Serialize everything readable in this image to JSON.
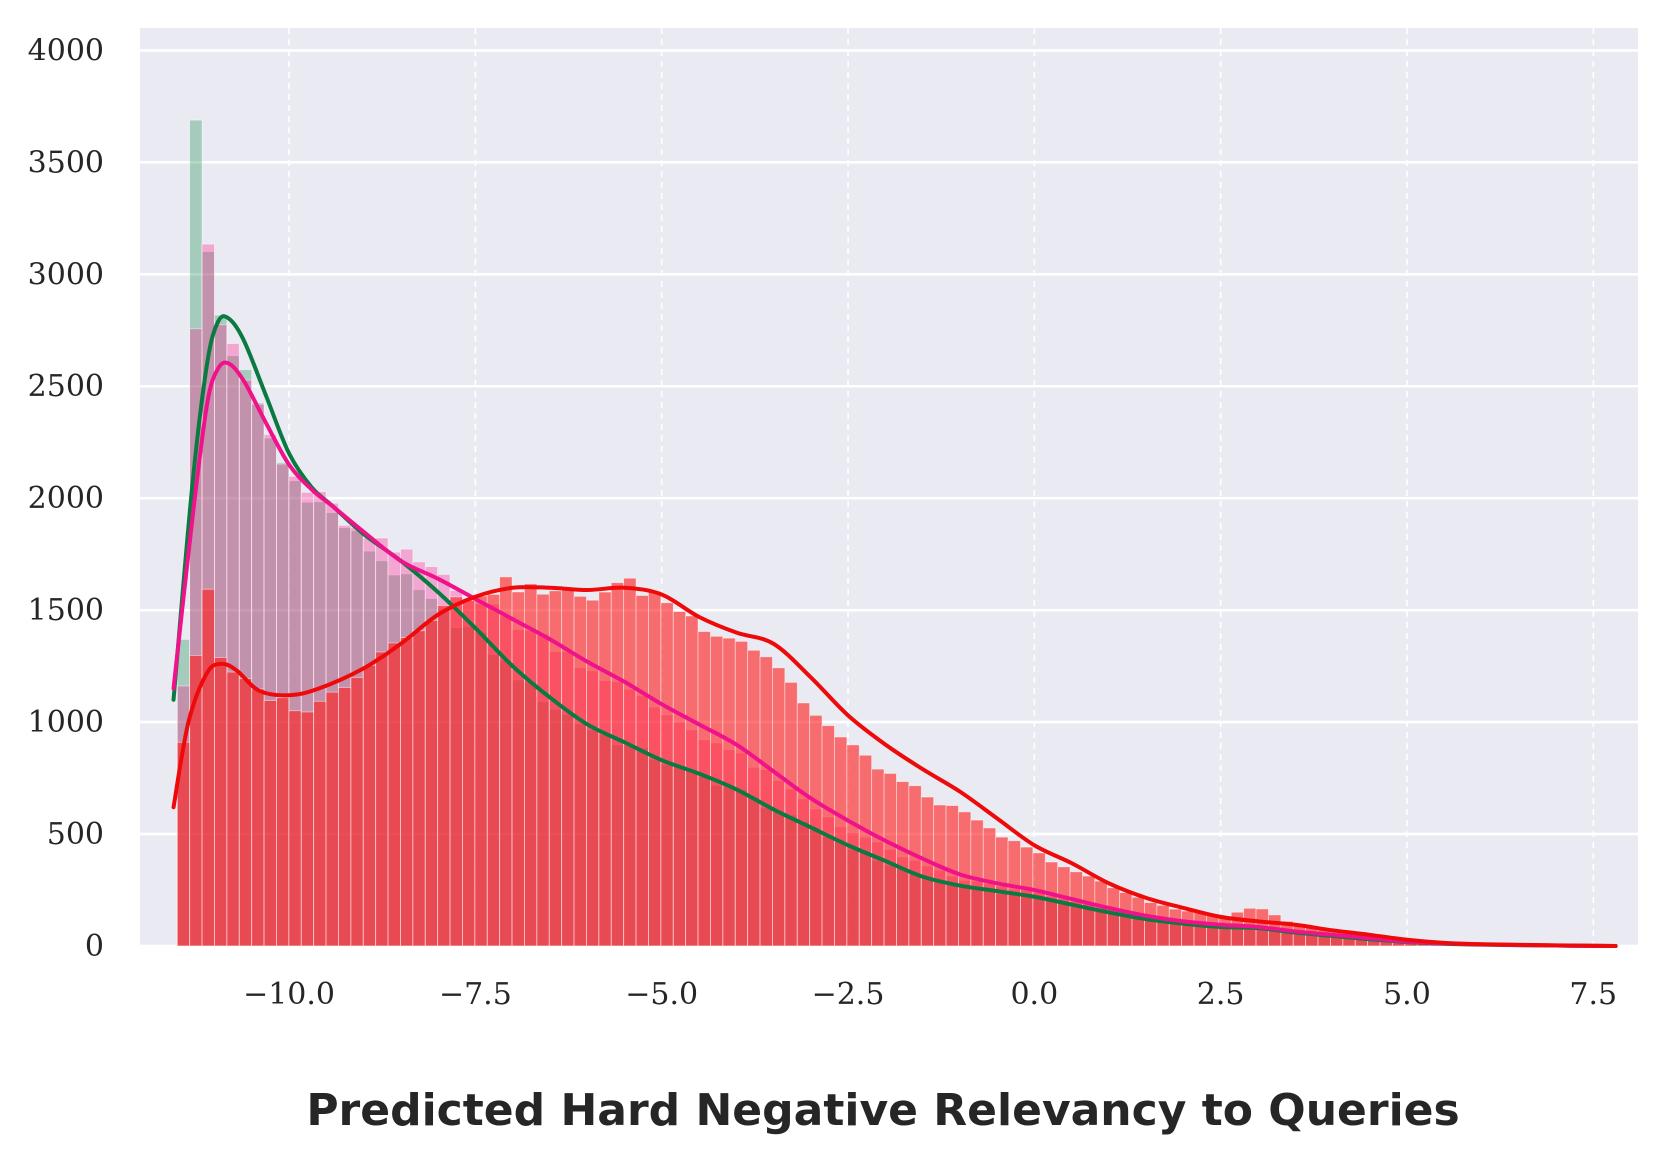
{
  "chart_data": {
    "type": "histogram",
    "title": "",
    "xlabel": "Predicted Hard Negative Relevancy to Queries",
    "ylabel": "",
    "xlim": [
      -12.0,
      8.1
    ],
    "ylim": [
      0,
      4100
    ],
    "xticks": [
      -10.0,
      -7.5,
      -5.0,
      -2.5,
      0.0,
      2.5,
      5.0,
      7.5
    ],
    "xtick_labels": [
      "−10.0",
      "−7.5",
      "−5.0",
      "−2.5",
      "0.0",
      "2.5",
      "5.0",
      "7.5"
    ],
    "yticks": [
      0,
      500,
      1000,
      1500,
      2000,
      2500,
      3000,
      3500,
      4000
    ],
    "ytick_labels": [
      "0",
      "500",
      "1000",
      "1500",
      "2000",
      "2500",
      "3000",
      "3500",
      "4000"
    ],
    "grid": true,
    "background": "#eaeaf2",
    "bin_range": [
      -11.5,
      7.8
    ],
    "bin_count": 116,
    "series": [
      {
        "color": "#148a4a",
        "line_color": "#0b7a42",
        "bar_opacity": 0.32,
        "anchors": [
          [
            -11.45,
            650
          ],
          [
            -11.3,
            3900
          ],
          [
            -11.15,
            3260
          ],
          [
            -11.0,
            2900
          ],
          [
            -10.8,
            2700
          ],
          [
            -10.6,
            2550
          ],
          [
            -10.3,
            2300
          ],
          [
            -10.0,
            2100
          ],
          [
            -9.5,
            1950
          ],
          [
            -9.0,
            1800
          ],
          [
            -8.5,
            1650
          ],
          [
            -8.0,
            1500
          ],
          [
            -7.5,
            1400
          ],
          [
            -7.0,
            1230
          ],
          [
            -6.5,
            1080
          ],
          [
            -6.0,
            980
          ],
          [
            -5.5,
            900
          ],
          [
            -5.0,
            830
          ],
          [
            -4.5,
            760
          ],
          [
            -4.0,
            700
          ],
          [
            -3.5,
            610
          ],
          [
            -3.0,
            530
          ],
          [
            -2.5,
            450
          ],
          [
            -2.0,
            370
          ],
          [
            -1.5,
            310
          ],
          [
            -1.0,
            270
          ],
          [
            -0.5,
            240
          ],
          [
            0.0,
            220
          ],
          [
            0.5,
            190
          ],
          [
            1.0,
            160
          ],
          [
            1.5,
            130
          ],
          [
            2.0,
            110
          ],
          [
            2.5,
            95
          ],
          [
            3.0,
            90
          ],
          [
            3.5,
            70
          ],
          [
            4.0,
            55
          ],
          [
            4.5,
            40
          ],
          [
            5.0,
            25
          ],
          [
            5.5,
            15
          ],
          [
            6.0,
            10
          ],
          [
            6.5,
            6
          ],
          [
            7.0,
            3
          ],
          [
            7.8,
            0
          ]
        ],
        "kde": [
          [
            -11.55,
            1100
          ],
          [
            -11.3,
            2050
          ],
          [
            -11.1,
            2600
          ],
          [
            -10.95,
            2790
          ],
          [
            -10.8,
            2800
          ],
          [
            -10.6,
            2700
          ],
          [
            -10.3,
            2450
          ],
          [
            -10.0,
            2200
          ],
          [
            -9.7,
            2050
          ],
          [
            -9.4,
            1960
          ],
          [
            -9.0,
            1840
          ],
          [
            -8.5,
            1720
          ],
          [
            -8.0,
            1580
          ],
          [
            -7.5,
            1420
          ],
          [
            -7.0,
            1250
          ],
          [
            -6.5,
            1110
          ],
          [
            -6.0,
            990
          ],
          [
            -5.5,
            910
          ],
          [
            -5.0,
            830
          ],
          [
            -4.5,
            770
          ],
          [
            -4.0,
            700
          ],
          [
            -3.5,
            610
          ],
          [
            -3.0,
            530
          ],
          [
            -2.5,
            450
          ],
          [
            -2.0,
            380
          ],
          [
            -1.5,
            310
          ],
          [
            -1.0,
            270
          ],
          [
            -0.5,
            245
          ],
          [
            0.0,
            220
          ],
          [
            0.5,
            185
          ],
          [
            1.0,
            150
          ],
          [
            1.5,
            120
          ],
          [
            2.0,
            100
          ],
          [
            2.5,
            85
          ],
          [
            3.0,
            80
          ],
          [
            3.5,
            60
          ],
          [
            4.0,
            45
          ],
          [
            4.5,
            30
          ],
          [
            5.0,
            18
          ],
          [
            5.5,
            10
          ],
          [
            6.0,
            6
          ],
          [
            7.0,
            2
          ],
          [
            7.8,
            0
          ]
        ]
      },
      {
        "color": "#ff1a8c",
        "line_color": "#f0128a",
        "bar_opacity": 0.32,
        "anchors": [
          [
            -11.45,
            980
          ],
          [
            -11.3,
            1800
          ],
          [
            -11.2,
            3730
          ],
          [
            -11.05,
            2960
          ],
          [
            -10.9,
            2750
          ],
          [
            -10.7,
            2600
          ],
          [
            -10.4,
            2400
          ],
          [
            -10.1,
            2150
          ],
          [
            -9.7,
            2020
          ],
          [
            -9.3,
            1920
          ],
          [
            -9.0,
            1820
          ],
          [
            -8.5,
            1750
          ],
          [
            -8.0,
            1680
          ],
          [
            -7.5,
            1550
          ],
          [
            -7.0,
            1450
          ],
          [
            -6.5,
            1360
          ],
          [
            -6.0,
            1250
          ],
          [
            -5.5,
            1150
          ],
          [
            -5.0,
            1050
          ],
          [
            -4.5,
            950
          ],
          [
            -4.0,
            860
          ],
          [
            -3.5,
            750
          ],
          [
            -3.0,
            630
          ],
          [
            -2.5,
            520
          ],
          [
            -2.0,
            440
          ],
          [
            -1.5,
            360
          ],
          [
            -1.0,
            300
          ],
          [
            -0.5,
            270
          ],
          [
            0.0,
            240
          ],
          [
            0.5,
            200
          ],
          [
            1.0,
            165
          ],
          [
            1.5,
            135
          ],
          [
            2.0,
            115
          ],
          [
            2.5,
            100
          ],
          [
            3.0,
            90
          ],
          [
            3.5,
            70
          ],
          [
            4.0,
            55
          ],
          [
            4.5,
            40
          ],
          [
            5.0,
            25
          ],
          [
            5.5,
            15
          ],
          [
            6.0,
            10
          ],
          [
            6.5,
            6
          ],
          [
            7.0,
            3
          ],
          [
            7.8,
            0
          ]
        ],
        "kde": [
          [
            -11.55,
            1150
          ],
          [
            -11.3,
            1900
          ],
          [
            -11.1,
            2420
          ],
          [
            -10.95,
            2580
          ],
          [
            -10.8,
            2600
          ],
          [
            -10.6,
            2520
          ],
          [
            -10.3,
            2330
          ],
          [
            -10.0,
            2150
          ],
          [
            -9.7,
            2040
          ],
          [
            -9.4,
            1960
          ],
          [
            -9.0,
            1850
          ],
          [
            -8.5,
            1720
          ],
          [
            -8.0,
            1640
          ],
          [
            -7.5,
            1550
          ],
          [
            -7.0,
            1460
          ],
          [
            -6.5,
            1370
          ],
          [
            -6.0,
            1270
          ],
          [
            -5.5,
            1180
          ],
          [
            -5.0,
            1080
          ],
          [
            -4.5,
            990
          ],
          [
            -4.0,
            900
          ],
          [
            -3.5,
            780
          ],
          [
            -3.0,
            660
          ],
          [
            -2.5,
            560
          ],
          [
            -2.0,
            470
          ],
          [
            -1.5,
            390
          ],
          [
            -1.0,
            320
          ],
          [
            -0.5,
            280
          ],
          [
            0.0,
            250
          ],
          [
            0.5,
            210
          ],
          [
            1.0,
            170
          ],
          [
            1.5,
            135
          ],
          [
            2.0,
            110
          ],
          [
            2.5,
            95
          ],
          [
            3.0,
            85
          ],
          [
            3.5,
            65
          ],
          [
            4.0,
            50
          ],
          [
            4.5,
            35
          ],
          [
            5.0,
            20
          ],
          [
            5.5,
            12
          ],
          [
            6.0,
            7
          ],
          [
            7.0,
            2
          ],
          [
            7.8,
            0
          ]
        ]
      },
      {
        "color": "#ff1f1f",
        "line_color": "#ee0a0a",
        "bar_opacity": 0.62,
        "anchors": [
          [
            -11.45,
            870
          ],
          [
            -11.3,
            1050
          ],
          [
            -11.15,
            1800
          ],
          [
            -11.0,
            1330
          ],
          [
            -10.8,
            1230
          ],
          [
            -10.5,
            1150
          ],
          [
            -10.0,
            1080
          ],
          [
            -9.7,
            1050
          ],
          [
            -9.3,
            1160
          ],
          [
            -9.0,
            1250
          ],
          [
            -8.5,
            1380
          ],
          [
            -8.0,
            1500
          ],
          [
            -7.5,
            1580
          ],
          [
            -7.0,
            1620
          ],
          [
            -6.5,
            1570
          ],
          [
            -6.0,
            1560
          ],
          [
            -5.5,
            1620
          ],
          [
            -5.0,
            1560
          ],
          [
            -4.5,
            1440
          ],
          [
            -4.0,
            1380
          ],
          [
            -3.5,
            1280
          ],
          [
            -3.0,
            1050
          ],
          [
            -2.5,
            900
          ],
          [
            -2.0,
            780
          ],
          [
            -1.5,
            680
          ],
          [
            -1.0,
            600
          ],
          [
            -0.5,
            500
          ],
          [
            0.0,
            420
          ],
          [
            0.5,
            340
          ],
          [
            1.0,
            270
          ],
          [
            1.5,
            200
          ],
          [
            2.0,
            160
          ],
          [
            2.5,
            130
          ],
          [
            3.0,
            175
          ],
          [
            3.5,
            95
          ],
          [
            4.0,
            75
          ],
          [
            4.5,
            55
          ],
          [
            5.0,
            30
          ],
          [
            5.5,
            18
          ],
          [
            6.0,
            10
          ],
          [
            6.5,
            6
          ],
          [
            7.0,
            3
          ],
          [
            7.8,
            0
          ]
        ],
        "kde": [
          [
            -11.55,
            620
          ],
          [
            -11.35,
            1000
          ],
          [
            -11.1,
            1220
          ],
          [
            -10.9,
            1260
          ],
          [
            -10.7,
            1230
          ],
          [
            -10.4,
            1140
          ],
          [
            -10.0,
            1120
          ],
          [
            -9.6,
            1150
          ],
          [
            -9.0,
            1240
          ],
          [
            -8.5,
            1350
          ],
          [
            -8.0,
            1480
          ],
          [
            -7.5,
            1560
          ],
          [
            -7.0,
            1600
          ],
          [
            -6.5,
            1600
          ],
          [
            -6.0,
            1590
          ],
          [
            -5.5,
            1600
          ],
          [
            -5.0,
            1570
          ],
          [
            -4.5,
            1470
          ],
          [
            -4.0,
            1400
          ],
          [
            -3.5,
            1350
          ],
          [
            -3.0,
            1200
          ],
          [
            -2.5,
            1030
          ],
          [
            -2.0,
            900
          ],
          [
            -1.5,
            790
          ],
          [
            -1.0,
            690
          ],
          [
            -0.5,
            570
          ],
          [
            0.0,
            450
          ],
          [
            0.5,
            370
          ],
          [
            1.0,
            280
          ],
          [
            1.5,
            215
          ],
          [
            2.0,
            170
          ],
          [
            2.5,
            130
          ],
          [
            3.0,
            110
          ],
          [
            3.5,
            95
          ],
          [
            4.0,
            70
          ],
          [
            4.5,
            50
          ],
          [
            5.0,
            28
          ],
          [
            5.5,
            14
          ],
          [
            6.0,
            8
          ],
          [
            7.0,
            3
          ],
          [
            7.8,
            0
          ]
        ]
      }
    ]
  }
}
